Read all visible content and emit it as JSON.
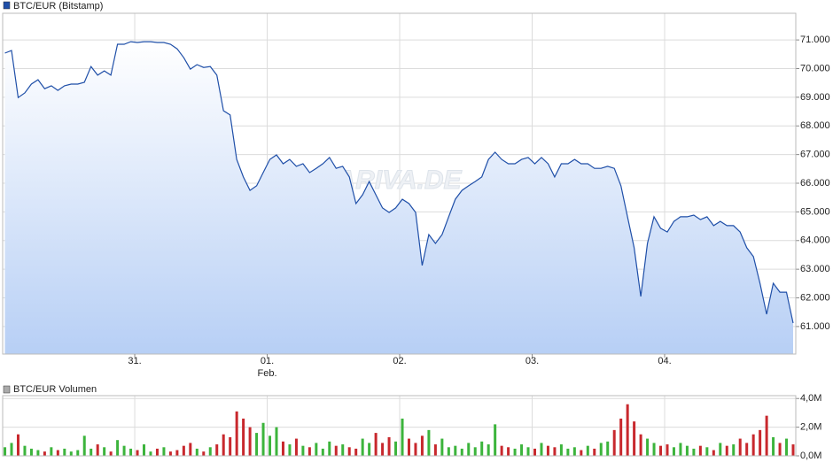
{
  "chart_data": [
    {
      "type": "line",
      "title": "BTC/EUR (Bitstamp)",
      "watermark": "ARIVA.DE",
      "color": "#1f4fa8",
      "fill_top": "#ffffff",
      "fill_bottom": "#b7cff5",
      "grid": true,
      "xlim": [
        -0.997,
        4.99
      ],
      "xticks": [
        {
          "value": 0,
          "label": "31."
        },
        {
          "value": 1,
          "label": "01. Feb."
        },
        {
          "value": 2,
          "label": "02."
        },
        {
          "value": 3,
          "label": "03."
        },
        {
          "value": 4,
          "label": "04."
        }
      ],
      "ylim": [
        60040,
        71930
      ],
      "yticks": [
        {
          "value": 61000,
          "label": "61.000"
        },
        {
          "value": 62000,
          "label": "62.000"
        },
        {
          "value": 63000,
          "label": "63.000"
        },
        {
          "value": 64000,
          "label": "64.000"
        },
        {
          "value": 65000,
          "label": "65.000"
        },
        {
          "value": 66000,
          "label": "66.000"
        },
        {
          "value": 67000,
          "label": "67.000"
        },
        {
          "value": 68000,
          "label": "68.000"
        },
        {
          "value": 69000,
          "label": "69.000"
        },
        {
          "value": 70000,
          "label": "70.000"
        },
        {
          "value": 71000,
          "label": "71.000"
        }
      ],
      "x": [
        -0.98,
        -0.93,
        -0.88,
        -0.83,
        -0.78,
        -0.73,
        -0.68,
        -0.63,
        -0.58,
        -0.53,
        -0.48,
        -0.43,
        -0.38,
        -0.33,
        -0.28,
        -0.23,
        -0.18,
        -0.13,
        -0.08,
        -0.03,
        0.02,
        0.07,
        0.12,
        0.17,
        0.22,
        0.27,
        0.32,
        0.37,
        0.42,
        0.47,
        0.52,
        0.57,
        0.62,
        0.67,
        0.72,
        0.77,
        0.82,
        0.87,
        0.92,
        0.97,
        1.02,
        1.07,
        1.12,
        1.17,
        1.22,
        1.27,
        1.32,
        1.37,
        1.42,
        1.47,
        1.52,
        1.57,
        1.62,
        1.67,
        1.72,
        1.77,
        1.82,
        1.87,
        1.92,
        1.97,
        2.02,
        2.07,
        2.12,
        2.17,
        2.22,
        2.27,
        2.32,
        2.37,
        2.42,
        2.47,
        2.52,
        2.57,
        2.62,
        2.67,
        2.72,
        2.77,
        2.82,
        2.87,
        2.92,
        2.97,
        3.02,
        3.07,
        3.12,
        3.17,
        3.22,
        3.27,
        3.32,
        3.37,
        3.42,
        3.47,
        3.52,
        3.57,
        3.62,
        3.67,
        3.72,
        3.77,
        3.82,
        3.87,
        3.92,
        3.97,
        4.02,
        4.07,
        4.12,
        4.17,
        4.22,
        4.27,
        4.32,
        4.37,
        4.42,
        4.47,
        4.52,
        4.57,
        4.62,
        4.67,
        4.72,
        4.77,
        4.82,
        4.87,
        4.92,
        4.97
      ],
      "values": [
        70540,
        70630,
        68990,
        69150,
        69460,
        69610,
        69300,
        69400,
        69240,
        69400,
        69460,
        69460,
        69520,
        70070,
        69770,
        69920,
        69770,
        70850,
        70850,
        70940,
        70910,
        70940,
        70940,
        70910,
        70910,
        70850,
        70690,
        70380,
        69980,
        70140,
        70040,
        70070,
        69770,
        68530,
        68380,
        66830,
        66220,
        65750,
        65910,
        66370,
        66830,
        66990,
        66680,
        66830,
        66590,
        66680,
        66370,
        66520,
        66680,
        66900,
        66520,
        66590,
        66220,
        65290,
        65600,
        66060,
        65600,
        65140,
        64980,
        65140,
        65440,
        65290,
        64980,
        63130,
        64210,
        63900,
        64210,
        64830,
        65440,
        65750,
        65910,
        66060,
        66220,
        66830,
        67080,
        66830,
        66680,
        66680,
        66830,
        66900,
        66680,
        66900,
        66680,
        66220,
        66680,
        66680,
        66830,
        66680,
        66680,
        66520,
        66520,
        66590,
        66520,
        65910,
        64830,
        63750,
        62050,
        63900,
        64830,
        64430,
        64300,
        64670,
        64830,
        64830,
        64890,
        64730,
        64830,
        64520,
        64670,
        64520,
        64520,
        64300,
        63750,
        63440,
        62510,
        61430,
        62510,
        62200,
        62200,
        61120
      ]
    },
    {
      "type": "bar",
      "title": "BTC/EUR Volumen",
      "colors": {
        "up": "#3cb43c",
        "down": "#c8282d"
      },
      "grid": true,
      "xlim": [
        -0.997,
        4.99
      ],
      "ylim": [
        0,
        4200000
      ],
      "yticks": [
        {
          "value": 0,
          "label": "0,0M"
        },
        {
          "value": 2000000,
          "label": "2,0M"
        },
        {
          "value": 4000000,
          "label": "4,0M"
        }
      ],
      "x": [
        -0.98,
        -0.93,
        -0.88,
        -0.83,
        -0.78,
        -0.73,
        -0.68,
        -0.63,
        -0.58,
        -0.53,
        -0.48,
        -0.43,
        -0.38,
        -0.33,
        -0.28,
        -0.23,
        -0.18,
        -0.13,
        -0.08,
        -0.03,
        0.02,
        0.07,
        0.12,
        0.17,
        0.22,
        0.27,
        0.32,
        0.37,
        0.42,
        0.47,
        0.52,
        0.57,
        0.62,
        0.67,
        0.72,
        0.77,
        0.82,
        0.87,
        0.92,
        0.97,
        1.02,
        1.07,
        1.12,
        1.17,
        1.22,
        1.27,
        1.32,
        1.37,
        1.42,
        1.47,
        1.52,
        1.57,
        1.62,
        1.67,
        1.72,
        1.77,
        1.82,
        1.87,
        1.92,
        1.97,
        2.02,
        2.07,
        2.12,
        2.17,
        2.22,
        2.27,
        2.32,
        2.37,
        2.42,
        2.47,
        2.52,
        2.57,
        2.62,
        2.67,
        2.72,
        2.77,
        2.82,
        2.87,
        2.92,
        2.97,
        3.02,
        3.07,
        3.12,
        3.17,
        3.22,
        3.27,
        3.32,
        3.37,
        3.42,
        3.47,
        3.52,
        3.57,
        3.62,
        3.67,
        3.72,
        3.77,
        3.82,
        3.87,
        3.92,
        3.97,
        4.02,
        4.07,
        4.12,
        4.17,
        4.22,
        4.27,
        4.32,
        4.37,
        4.42,
        4.47,
        4.52,
        4.57,
        4.62,
        4.67,
        4.72,
        4.77,
        4.82,
        4.87,
        4.92,
        4.97
      ],
      "values": [
        600000,
        900000,
        1500000,
        700000,
        500000,
        400000,
        300000,
        600000,
        400000,
        500000,
        300000,
        400000,
        1400000,
        500000,
        800000,
        600000,
        300000,
        1100000,
        700000,
        500000,
        400000,
        800000,
        300000,
        500000,
        600000,
        300000,
        400000,
        700000,
        900000,
        500000,
        300000,
        600000,
        800000,
        1500000,
        1300000,
        3100000,
        2600000,
        2000000,
        1600000,
        2300000,
        1400000,
        2000000,
        1000000,
        800000,
        1200000,
        700000,
        600000,
        900000,
        500000,
        1000000,
        700000,
        800000,
        600000,
        500000,
        1200000,
        900000,
        1600000,
        900000,
        1300000,
        1000000,
        2600000,
        1200000,
        900000,
        1400000,
        1800000,
        800000,
        1200000,
        600000,
        700000,
        500000,
        900000,
        600000,
        1000000,
        800000,
        2200000,
        700000,
        600000,
        500000,
        800000,
        600000,
        500000,
        900000,
        700000,
        600000,
        800000,
        500000,
        600000,
        400000,
        700000,
        500000,
        900000,
        1000000,
        1800000,
        2600000,
        3600000,
        2400000,
        1500000,
        1200000,
        900000,
        700000,
        800000,
        600000,
        900000,
        700000,
        500000,
        700000,
        600000,
        400000,
        900000,
        700000,
        800000,
        1200000,
        900000,
        1500000,
        1800000,
        2800000,
        1300000,
        900000,
        1200000,
        800000
      ]
    }
  ]
}
